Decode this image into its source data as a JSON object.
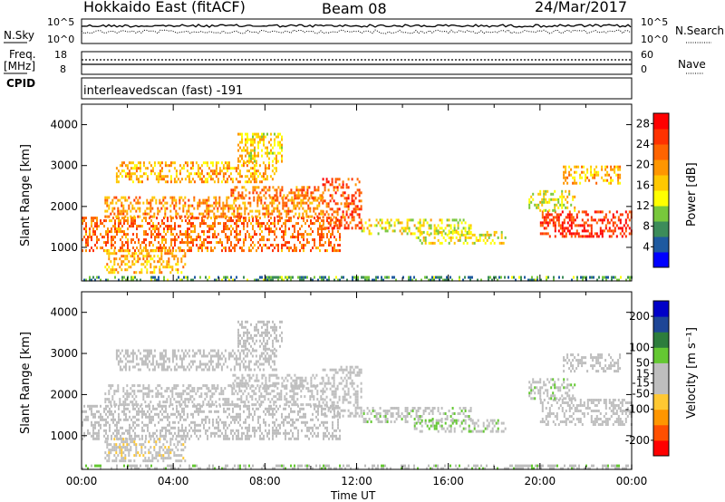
{
  "header": {
    "radar": "Hokkaido East (fitACF)",
    "beam": "Beam 08",
    "date": "24/Mar/2017"
  },
  "aux": {
    "nsky_label": "N.Sky",
    "nsky_ticks": [
      "10^5",
      "10^0"
    ],
    "nsearch_label": "N.Search",
    "nsearch_ticks": [
      "10^5",
      "10^0"
    ],
    "freq_label": "Freq.",
    "freq_unit": "[MHz]",
    "freq_ticks": [
      "18",
      "8"
    ],
    "nave_label": "Nave",
    "nave_ticks": [
      "60",
      "0"
    ],
    "cpid_label": "CPID",
    "cpid_text": "interleavedscan (fast) -191"
  },
  "colors": {
    "power": [
      "#0000ff",
      "#1e5aa0",
      "#3c8c5a",
      "#78c83c",
      "#ffff00",
      "#ffc800",
      "#ff9600",
      "#ff6400",
      "#ff3200",
      "#ff0000"
    ],
    "velocity": [
      "#ff0000",
      "#ff5000",
      "#ff9600",
      "#ffc832",
      "#bebebe",
      "#bebebe",
      "#64c832",
      "#2d7d3c",
      "#1e4696",
      "#0000c8"
    ],
    "ground_scatter": "#bebebe"
  },
  "chart_data": [
    {
      "type": "heatmap",
      "name": "power",
      "xlabel": "Time UT",
      "ylabel": "Slant Range [km]",
      "x_ticks": [
        "00:00",
        "04:00",
        "08:00",
        "12:00",
        "16:00",
        "20:00",
        "00:00"
      ],
      "x_range_hours": [
        0,
        24
      ],
      "ylim": [
        180,
        4500
      ],
      "y_ticks": [
        1000,
        2000,
        3000,
        4000
      ],
      "colorbar": {
        "label": "Power [dB]",
        "ticks": [
          4,
          8,
          12,
          16,
          20,
          24,
          28
        ],
        "range": [
          0,
          30
        ]
      },
      "echo_regions": [
        {
          "t0": 0.0,
          "t1": 11.3,
          "r0": 950,
          "r1": 1750,
          "level": 22
        },
        {
          "t0": 1.0,
          "t1": 10.5,
          "r0": 1750,
          "r1": 2250,
          "level": 20
        },
        {
          "t0": 10.5,
          "t1": 12.2,
          "r0": 1500,
          "r1": 2700,
          "level": 24
        },
        {
          "t0": 6.5,
          "t1": 10.5,
          "r0": 2200,
          "r1": 2500,
          "level": 22
        },
        {
          "t0": 1.5,
          "t1": 8.5,
          "r0": 2600,
          "r1": 3100,
          "level": 18
        },
        {
          "t0": 6.8,
          "t1": 8.7,
          "r0": 3100,
          "r1": 3800,
          "level": 16
        },
        {
          "t0": 1.0,
          "t1": 4.5,
          "r0": 400,
          "r1": 950,
          "level": 18
        },
        {
          "t0": 12.2,
          "t1": 17.0,
          "r0": 1350,
          "r1": 1700,
          "level": 14
        },
        {
          "t0": 14.5,
          "t1": 18.5,
          "r0": 1100,
          "r1": 1400,
          "level": 14
        },
        {
          "t0": 20.0,
          "t1": 24.0,
          "r0": 1300,
          "r1": 1900,
          "level": 26
        },
        {
          "t0": 19.5,
          "t1": 21.5,
          "r0": 1900,
          "r1": 2400,
          "level": 14
        },
        {
          "t0": 21.0,
          "t1": 23.5,
          "r0": 2600,
          "r1": 3000,
          "level": 18
        },
        {
          "t0": 0.0,
          "t1": 24.0,
          "r0": 180,
          "r1": 300,
          "level": 8
        }
      ]
    },
    {
      "type": "heatmap",
      "name": "velocity",
      "xlabel": "Time UT",
      "ylabel": "Slant Range [km]",
      "x_ticks": [
        "00:00",
        "04:00",
        "08:00",
        "12:00",
        "16:00",
        "20:00",
        "00:00"
      ],
      "x_range_hours": [
        0,
        24
      ],
      "ylim": [
        180,
        4500
      ],
      "y_ticks": [
        1000,
        2000,
        3000,
        4000
      ],
      "colorbar": {
        "label": "Velocity [m s⁻¹]",
        "ticks": [
          -200,
          -100,
          -50,
          -15,
          15,
          50,
          100,
          200
        ],
        "range": [
          -250,
          250
        ]
      },
      "echo_regions": [
        {
          "t0": 0.0,
          "t1": 11.3,
          "r0": 950,
          "r1": 1750,
          "level": 0
        },
        {
          "t0": 1.0,
          "t1": 10.5,
          "r0": 1750,
          "r1": 2250,
          "level": 0
        },
        {
          "t0": 10.5,
          "t1": 12.2,
          "r0": 1500,
          "r1": 2700,
          "level": 0
        },
        {
          "t0": 6.5,
          "t1": 10.5,
          "r0": 2200,
          "r1": 2500,
          "level": 0
        },
        {
          "t0": 1.5,
          "t1": 8.5,
          "r0": 2600,
          "r1": 3100,
          "level": 0
        },
        {
          "t0": 6.8,
          "t1": 8.7,
          "r0": 3100,
          "r1": 3800,
          "level": 0
        },
        {
          "t0": 1.0,
          "t1": 4.5,
          "r0": 400,
          "r1": 950,
          "level": -30
        },
        {
          "t0": 12.2,
          "t1": 17.0,
          "r0": 1350,
          "r1": 1700,
          "level": 30
        },
        {
          "t0": 14.5,
          "t1": 18.5,
          "r0": 1100,
          "r1": 1400,
          "level": 40
        },
        {
          "t0": 20.0,
          "t1": 24.0,
          "r0": 1300,
          "r1": 1900,
          "level": 0
        },
        {
          "t0": 19.5,
          "t1": 21.5,
          "r0": 1900,
          "r1": 2400,
          "level": 30
        },
        {
          "t0": 21.0,
          "t1": 23.5,
          "r0": 2600,
          "r1": 3000,
          "level": 0
        },
        {
          "t0": 0.0,
          "t1": 24.0,
          "r0": 180,
          "r1": 300,
          "level": 30
        }
      ]
    }
  ]
}
